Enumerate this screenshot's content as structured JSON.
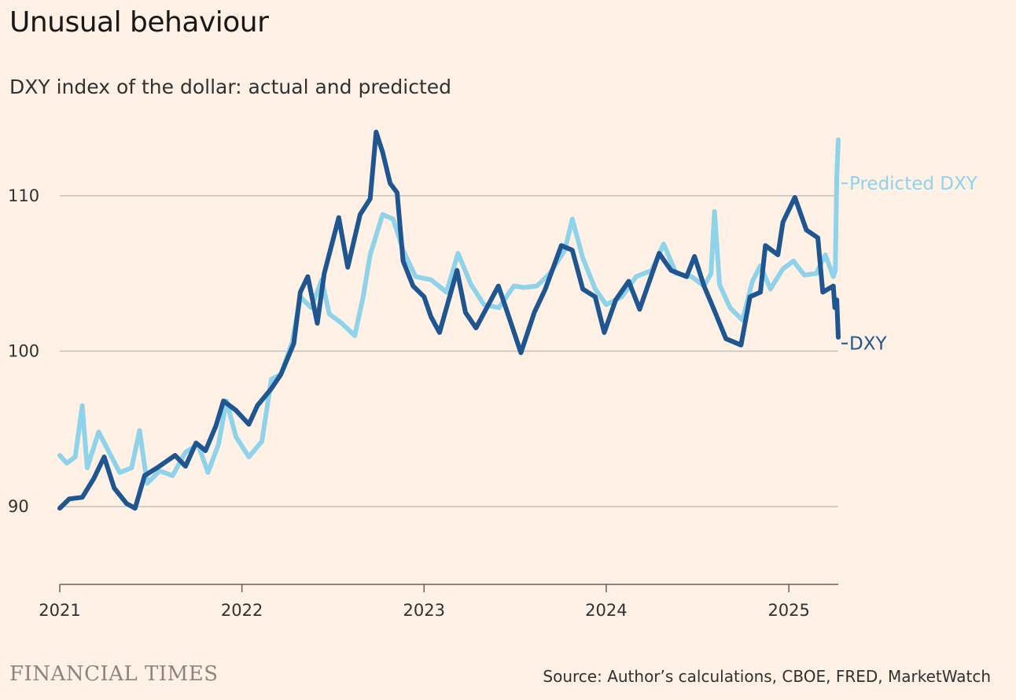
{
  "title": "Unusual behaviour",
  "subtitle": "DXY index of the dollar: actual and predicted",
  "brand": "FINANCIAL TIMES",
  "source": "Source: Author’s calculations, CBOE, FRED, MarketWatch",
  "colors": {
    "background": "#fff1e5",
    "dxy": "#1f5591",
    "predicted": "#8fd3ea",
    "grid": "#c8bfb6"
  },
  "chart_data": {
    "type": "line",
    "x_axis": {
      "type": "date",
      "range": [
        "2021-01-01",
        "2025-04-10"
      ],
      "ticks": [
        "2021",
        "2022",
        "2023",
        "2024",
        "2025"
      ]
    },
    "y_axis": {
      "range": [
        85,
        114.5
      ],
      "ticks": [
        90,
        100,
        110
      ],
      "grid": true
    },
    "series": [
      {
        "name": "DXY",
        "color": "#1f5591",
        "points": [
          [
            "2021-01-01",
            89.9
          ],
          [
            "2021-01-20",
            90.5
          ],
          [
            "2021-02-15",
            90.6
          ],
          [
            "2021-03-10",
            91.8
          ],
          [
            "2021-03-31",
            93.2
          ],
          [
            "2021-04-20",
            91.2
          ],
          [
            "2021-05-15",
            90.2
          ],
          [
            "2021-06-01",
            89.9
          ],
          [
            "2021-06-20",
            92.0
          ],
          [
            "2021-07-15",
            92.5
          ],
          [
            "2021-08-20",
            93.3
          ],
          [
            "2021-09-10",
            92.6
          ],
          [
            "2021-10-01",
            94.1
          ],
          [
            "2021-10-20",
            93.6
          ],
          [
            "2021-11-10",
            95.2
          ],
          [
            "2021-11-25",
            96.8
          ],
          [
            "2021-12-20",
            96.2
          ],
          [
            "2022-01-15",
            95.3
          ],
          [
            "2022-02-01",
            96.5
          ],
          [
            "2022-03-01",
            97.6
          ],
          [
            "2022-03-20",
            98.5
          ],
          [
            "2022-04-15",
            100.5
          ],
          [
            "2022-04-28",
            103.8
          ],
          [
            "2022-05-13",
            104.8
          ],
          [
            "2022-06-01",
            101.8
          ],
          [
            "2022-06-15",
            105.0
          ],
          [
            "2022-07-14",
            108.6
          ],
          [
            "2022-08-01",
            105.4
          ],
          [
            "2022-08-26",
            108.8
          ],
          [
            "2022-09-15",
            109.8
          ],
          [
            "2022-09-27",
            114.1
          ],
          [
            "2022-10-10",
            112.8
          ],
          [
            "2022-10-25",
            110.8
          ],
          [
            "2022-11-08",
            110.2
          ],
          [
            "2022-11-20",
            105.8
          ],
          [
            "2022-12-10",
            104.2
          ],
          [
            "2023-01-01",
            103.5
          ],
          [
            "2023-01-15",
            102.2
          ],
          [
            "2023-02-01",
            101.2
          ],
          [
            "2023-03-08",
            105.2
          ],
          [
            "2023-03-25",
            102.5
          ],
          [
            "2023-04-15",
            101.5
          ],
          [
            "2023-05-30",
            104.2
          ],
          [
            "2023-06-20",
            102.2
          ],
          [
            "2023-07-14",
            99.9
          ],
          [
            "2023-08-10",
            102.5
          ],
          [
            "2023-09-01",
            104.0
          ],
          [
            "2023-10-03",
            106.8
          ],
          [
            "2023-10-25",
            106.5
          ],
          [
            "2023-11-15",
            104.0
          ],
          [
            "2023-12-10",
            103.5
          ],
          [
            "2023-12-28",
            101.2
          ],
          [
            "2024-01-20",
            103.3
          ],
          [
            "2024-02-15",
            104.5
          ],
          [
            "2024-03-08",
            102.7
          ],
          [
            "2024-04-16",
            106.3
          ],
          [
            "2024-05-10",
            105.2
          ],
          [
            "2024-06-10",
            104.8
          ],
          [
            "2024-06-26",
            106.1
          ],
          [
            "2024-07-15",
            104.2
          ],
          [
            "2024-08-05",
            102.6
          ],
          [
            "2024-08-28",
            100.8
          ],
          [
            "2024-09-27",
            100.4
          ],
          [
            "2024-10-15",
            103.5
          ],
          [
            "2024-11-05",
            103.8
          ],
          [
            "2024-11-15",
            106.8
          ],
          [
            "2024-12-10",
            106.2
          ],
          [
            "2024-12-20",
            108.3
          ],
          [
            "2025-01-13",
            109.9
          ],
          [
            "2025-02-05",
            107.8
          ],
          [
            "2025-02-28",
            107.3
          ],
          [
            "2025-03-10",
            103.8
          ],
          [
            "2025-03-31",
            104.2
          ],
          [
            "2025-04-03",
            102.8
          ],
          [
            "2025-04-07",
            103.3
          ],
          [
            "2025-04-10",
            100.9
          ]
        ]
      },
      {
        "name": "Predicted DXY",
        "color": "#8fd3ea",
        "points": [
          [
            "2021-01-01",
            93.3
          ],
          [
            "2021-01-15",
            92.8
          ],
          [
            "2021-02-01",
            93.2
          ],
          [
            "2021-02-15",
            96.5
          ],
          [
            "2021-02-25",
            92.5
          ],
          [
            "2021-03-20",
            94.8
          ],
          [
            "2021-04-10",
            93.5
          ],
          [
            "2021-05-01",
            92.2
          ],
          [
            "2021-05-25",
            92.5
          ],
          [
            "2021-06-10",
            94.9
          ],
          [
            "2021-06-25",
            91.5
          ],
          [
            "2021-07-20",
            92.3
          ],
          [
            "2021-08-15",
            92.0
          ],
          [
            "2021-09-10",
            93.5
          ],
          [
            "2021-10-05",
            94.0
          ],
          [
            "2021-10-25",
            92.2
          ],
          [
            "2021-11-15",
            94.0
          ],
          [
            "2021-12-01",
            96.8
          ],
          [
            "2021-12-20",
            94.5
          ],
          [
            "2022-01-15",
            93.2
          ],
          [
            "2022-02-10",
            94.2
          ],
          [
            "2022-03-01",
            98.2
          ],
          [
            "2022-03-20",
            98.5
          ],
          [
            "2022-04-12",
            100.6
          ],
          [
            "2022-04-28",
            103.5
          ],
          [
            "2022-05-20",
            102.8
          ],
          [
            "2022-06-10",
            104.6
          ],
          [
            "2022-06-25",
            102.4
          ],
          [
            "2022-07-20",
            101.8
          ],
          [
            "2022-08-15",
            101.0
          ],
          [
            "2022-09-01",
            103.5
          ],
          [
            "2022-09-15",
            106.2
          ],
          [
            "2022-10-10",
            108.8
          ],
          [
            "2022-10-31",
            108.5
          ],
          [
            "2022-11-20",
            106.5
          ],
          [
            "2022-12-15",
            104.8
          ],
          [
            "2023-01-15",
            104.6
          ],
          [
            "2023-02-15",
            103.8
          ],
          [
            "2023-03-10",
            106.3
          ],
          [
            "2023-04-05",
            104.3
          ],
          [
            "2023-05-01",
            103.0
          ],
          [
            "2023-05-31",
            102.8
          ],
          [
            "2023-06-30",
            104.2
          ],
          [
            "2023-07-20",
            104.1
          ],
          [
            "2023-08-15",
            104.2
          ],
          [
            "2023-09-10",
            105.0
          ],
          [
            "2023-10-10",
            106.5
          ],
          [
            "2023-10-25",
            108.5
          ],
          [
            "2023-11-15",
            106.0
          ],
          [
            "2023-12-10",
            104.0
          ],
          [
            "2024-01-01",
            103.0
          ],
          [
            "2024-02-01",
            103.5
          ],
          [
            "2024-03-01",
            104.8
          ],
          [
            "2024-04-01",
            105.2
          ],
          [
            "2024-04-25",
            106.9
          ],
          [
            "2024-05-20",
            105.0
          ],
          [
            "2024-06-20",
            104.8
          ],
          [
            "2024-07-15",
            104.2
          ],
          [
            "2024-07-29",
            105.0
          ],
          [
            "2024-08-05",
            109.0
          ],
          [
            "2024-08-15",
            104.3
          ],
          [
            "2024-09-05",
            102.8
          ],
          [
            "2024-09-30",
            102.0
          ],
          [
            "2024-10-20",
            104.5
          ],
          [
            "2024-11-05",
            105.5
          ],
          [
            "2024-11-25",
            104.0
          ],
          [
            "2024-12-20",
            105.3
          ],
          [
            "2025-01-10",
            105.8
          ],
          [
            "2025-02-01",
            104.9
          ],
          [
            "2025-02-25",
            105.0
          ],
          [
            "2025-03-15",
            106.2
          ],
          [
            "2025-03-31",
            104.8
          ],
          [
            "2025-04-04",
            105.2
          ],
          [
            "2025-04-07",
            111.2
          ],
          [
            "2025-04-10",
            113.6
          ]
        ]
      }
    ]
  }
}
